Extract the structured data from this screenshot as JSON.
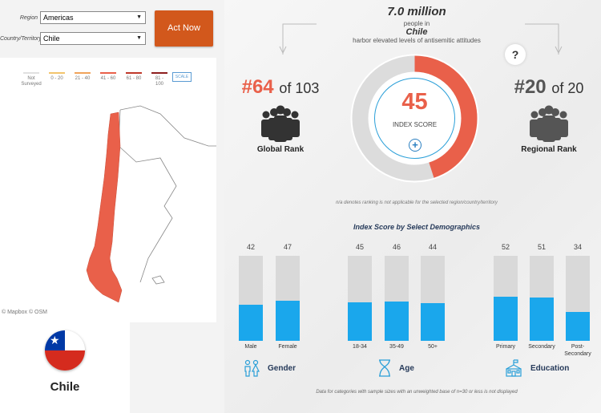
{
  "filters": {
    "region_label": "Region",
    "region_value": "Americas",
    "country_label": "Country/Territory",
    "country_value": "Chile",
    "act_now": "Act Now"
  },
  "map": {
    "legend": [
      {
        "label": "Not Surveyed",
        "color": "#e0e0e0"
      },
      {
        "label": "0 - 20",
        "color": "#f2c46d"
      },
      {
        "label": "21 - 40",
        "color": "#f0a35a"
      },
      {
        "label": "41 - 60",
        "color": "#e9604a"
      },
      {
        "label": "61 - 80",
        "color": "#c0392b"
      },
      {
        "label": "81 - 100",
        "color": "#8e1f1f"
      }
    ],
    "scale_label": "SCALE",
    "credit": "© Mapbox © OSM",
    "highlight_color": "#e9604a"
  },
  "country_card": {
    "name": "Chile"
  },
  "headline": {
    "number": "7.0 million",
    "line1": "people in",
    "country": "Chile",
    "line2": "harbor elevated levels of antisemitic attitudes"
  },
  "help_symbol": "?",
  "global_rank": {
    "rank": "#64",
    "of": "of 103",
    "label": "Global Rank"
  },
  "regional_rank": {
    "rank": "#20",
    "of": "of 20",
    "label": "Regional Rank"
  },
  "index": {
    "value": "45",
    "label": "INDEX SCORE",
    "percent": 45,
    "accent": "#e9604a"
  },
  "na_note": "n/a denotes ranking is not applicable for the selected region/country/territory",
  "demographics": {
    "title": "Index Score by Select Demographics",
    "groups": [
      {
        "label": "Gender",
        "bars": [
          {
            "category": "Male",
            "value": "42"
          },
          {
            "category": "Female",
            "value": "47"
          }
        ]
      },
      {
        "label": "Age",
        "bars": [
          {
            "category": "18-34",
            "value": "45"
          },
          {
            "category": "35-49",
            "value": "46"
          },
          {
            "category": "50+",
            "value": "44"
          }
        ]
      },
      {
        "label": "Education",
        "bars": [
          {
            "category": "Primary",
            "value": "52"
          },
          {
            "category": "Secondary",
            "value": "51"
          },
          {
            "category": "Post-\nSecondary",
            "value": "34"
          }
        ]
      }
    ],
    "footnote": "Data for categories with sample sizes with an unweighted base of n=30 or less is not displayed"
  }
}
